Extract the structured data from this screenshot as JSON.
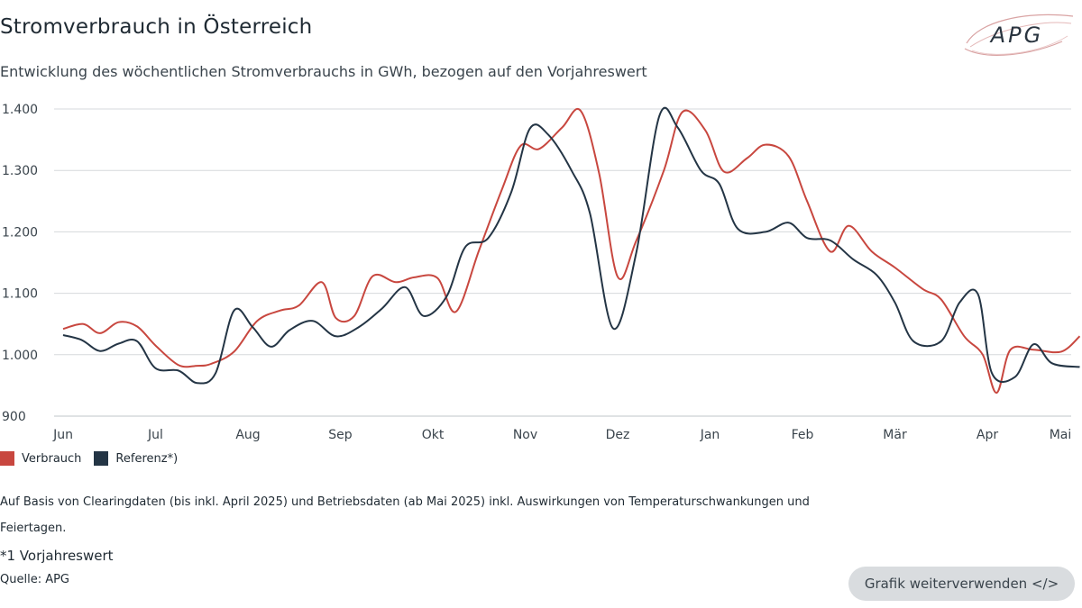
{
  "header": {
    "title": "Stromverbrauch in Österreich",
    "subtitle": "Entwicklung des wöchentlichen Stromverbrauchs in GWh, bezogen auf den Vorjahreswert"
  },
  "logo": {
    "text": "APG",
    "color": "#2a3540",
    "swirl_color": "#d9a3a3"
  },
  "legend": [
    {
      "label": "Verbrauch",
      "color": "#c8473f"
    },
    {
      "label": "Referenz*)",
      "color": "#243545"
    }
  ],
  "notes": {
    "basis": "Auf Basis von Clearingdaten (bis inkl. April 2025) und Betriebsdaten (ab Mai 2025) inkl. Auswirkungen von Temperaturschwankungen und Feiertagen.",
    "footnote": "*1 Vorjahreswert",
    "source": "Quelle: APG"
  },
  "reuse_button": {
    "label": "Grafik weiterverwenden </>"
  },
  "chart_data": {
    "type": "line",
    "title": "Stromverbrauch in Österreich",
    "subtitle": "Entwicklung des wöchentlichen Stromverbrauchs in GWh, bezogen auf den Vorjahreswert",
    "x_tick_labels": [
      "Jun",
      "Jul",
      "Aug",
      "Sep",
      "Okt",
      "Nov",
      "Dez",
      "Jan",
      "Feb",
      "Mär",
      "Apr",
      "Mai"
    ],
    "y_tick_labels": [
      "900",
      "1.000",
      "1.100",
      "1.200",
      "1.300",
      "1.400"
    ],
    "y_ticks": [
      900,
      1000,
      1100,
      1200,
      1300,
      1400
    ],
    "ylim": [
      900,
      1410
    ],
    "x_unit": "months from start of June",
    "xlim": [
      0,
      11.1
    ],
    "grid": true,
    "legend_position": "bottom-left",
    "series": [
      {
        "name": "Verbrauch",
        "color": "#c8473f",
        "points": [
          [
            0.0,
            1042
          ],
          [
            0.22,
            1050
          ],
          [
            0.4,
            1035
          ],
          [
            0.6,
            1053
          ],
          [
            0.8,
            1046
          ],
          [
            1.0,
            1015
          ],
          [
            1.25,
            983
          ],
          [
            1.45,
            982
          ],
          [
            1.6,
            985
          ],
          [
            1.85,
            1005
          ],
          [
            2.1,
            1055
          ],
          [
            2.35,
            1072
          ],
          [
            2.55,
            1080
          ],
          [
            2.8,
            1118
          ],
          [
            2.95,
            1060
          ],
          [
            3.15,
            1063
          ],
          [
            3.35,
            1128
          ],
          [
            3.6,
            1118
          ],
          [
            3.8,
            1126
          ],
          [
            4.05,
            1125
          ],
          [
            4.25,
            1070
          ],
          [
            4.5,
            1170
          ],
          [
            4.75,
            1270
          ],
          [
            4.95,
            1340
          ],
          [
            5.15,
            1335
          ],
          [
            5.4,
            1370
          ],
          [
            5.6,
            1397
          ],
          [
            5.8,
            1295
          ],
          [
            6.0,
            1127
          ],
          [
            6.2,
            1185
          ],
          [
            6.5,
            1300
          ],
          [
            6.7,
            1395
          ],
          [
            6.95,
            1365
          ],
          [
            7.15,
            1298
          ],
          [
            7.4,
            1320
          ],
          [
            7.6,
            1342
          ],
          [
            7.85,
            1323
          ],
          [
            8.05,
            1250
          ],
          [
            8.3,
            1168
          ],
          [
            8.5,
            1210
          ],
          [
            8.75,
            1168
          ],
          [
            9.0,
            1142
          ],
          [
            9.3,
            1107
          ],
          [
            9.5,
            1090
          ],
          [
            9.75,
            1030
          ],
          [
            9.95,
            1000
          ],
          [
            10.1,
            938
          ],
          [
            10.25,
            1008
          ],
          [
            10.5,
            1008
          ],
          [
            10.8,
            1005
          ],
          [
            11.0,
            1030
          ]
        ]
      },
      {
        "name": "Referenz*)",
        "color": "#243545",
        "points": [
          [
            0.0,
            1032
          ],
          [
            0.2,
            1024
          ],
          [
            0.4,
            1006
          ],
          [
            0.6,
            1018
          ],
          [
            0.8,
            1022
          ],
          [
            1.0,
            978
          ],
          [
            1.25,
            974
          ],
          [
            1.45,
            954
          ],
          [
            1.65,
            970
          ],
          [
            1.85,
            1072
          ],
          [
            2.05,
            1045
          ],
          [
            2.25,
            1013
          ],
          [
            2.45,
            1040
          ],
          [
            2.7,
            1055
          ],
          [
            2.95,
            1030
          ],
          [
            3.2,
            1045
          ],
          [
            3.45,
            1075
          ],
          [
            3.7,
            1110
          ],
          [
            3.9,
            1063
          ],
          [
            4.15,
            1095
          ],
          [
            4.35,
            1175
          ],
          [
            4.6,
            1190
          ],
          [
            4.85,
            1265
          ],
          [
            5.05,
            1368
          ],
          [
            5.25,
            1358
          ],
          [
            5.5,
            1300
          ],
          [
            5.7,
            1230
          ],
          [
            5.95,
            1043
          ],
          [
            6.2,
            1165
          ],
          [
            6.45,
            1388
          ],
          [
            6.65,
            1370
          ],
          [
            6.9,
            1300
          ],
          [
            7.1,
            1278
          ],
          [
            7.3,
            1205
          ],
          [
            7.6,
            1200
          ],
          [
            7.85,
            1215
          ],
          [
            8.05,
            1190
          ],
          [
            8.3,
            1186
          ],
          [
            8.55,
            1155
          ],
          [
            8.8,
            1130
          ],
          [
            9.0,
            1085
          ],
          [
            9.2,
            1022
          ],
          [
            9.5,
            1022
          ],
          [
            9.7,
            1085
          ],
          [
            9.9,
            1098
          ],
          [
            10.05,
            970
          ],
          [
            10.3,
            964
          ],
          [
            10.5,
            1017
          ],
          [
            10.7,
            986
          ],
          [
            11.0,
            980
          ]
        ]
      }
    ]
  }
}
